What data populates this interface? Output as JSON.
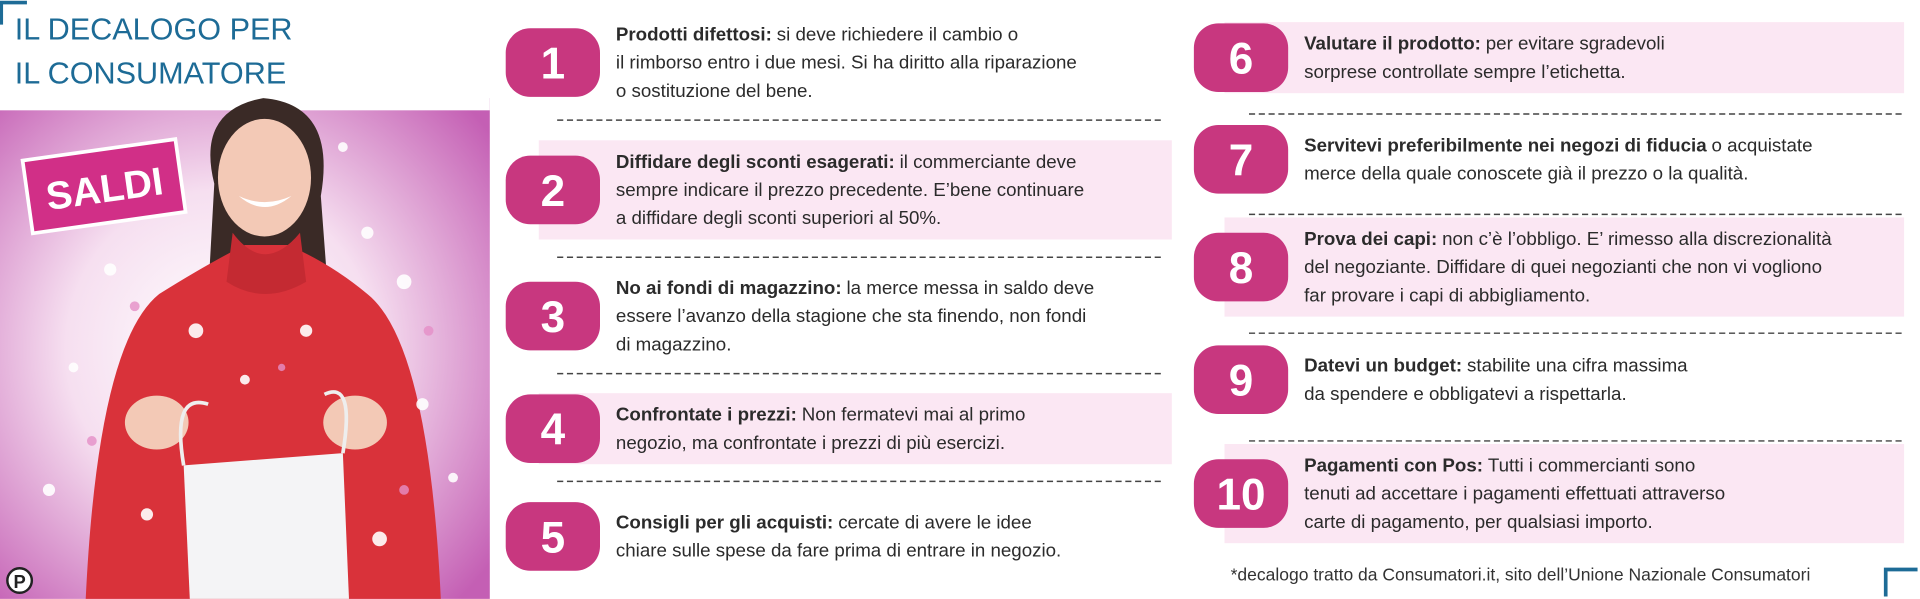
{
  "header": {
    "title_lines": [
      "IL DECALOGO PER",
      "IL CONSUMATORE"
    ]
  },
  "badge": "SALDI",
  "logo": "P",
  "items": [
    {
      "number": "1",
      "title": "Prodotti difettosi:",
      "lines": [
        "si deve richiedere il cambio o",
        "il rimborso entro i due mesi. Si ha diritto alla riparazione",
        "o sostituzione del bene."
      ]
    },
    {
      "number": "2",
      "title": "Diffidare degli sconti esagerati:",
      "lines": [
        "il commerciante deve",
        "sempre indicare il prezzo precedente. E’bene continuare",
        "a diffidare degli sconti superiori al 50%."
      ]
    },
    {
      "number": "3",
      "title": "No ai fondi di magazzino:",
      "lines": [
        "la merce messa in saldo deve",
        "essere l’avanzo della stagione che sta finendo, non fondi",
        "di magazzino."
      ]
    },
    {
      "number": "4",
      "title": "Confrontate i prezzi:",
      "lines": [
        "Non fermatevi mai al primo",
        "negozio, ma confrontate i prezzi di più esercizi."
      ]
    },
    {
      "number": "5",
      "title": "Consigli per gli acquisti:",
      "lines": [
        "cercate di avere le idee",
        "chiare sulle spese da fare prima di entrare in negozio."
      ]
    },
    {
      "number": "6",
      "title": "Valutare il prodotto:",
      "lines": [
        "per evitare sgradevoli",
        "sorprese controllate sempre l’etichetta."
      ]
    },
    {
      "number": "7",
      "title": "Servitevi preferibilmente nei negozi di fiducia",
      "lines": [
        "o acquistate",
        "merce della quale conoscete già il prezzo o la qualità."
      ]
    },
    {
      "number": "8",
      "title": "Prova dei capi:",
      "lines": [
        "non c’è l’obbligo. E’ rimesso alla discrezionalità",
        "del negoziante. Diffidare di quei negozianti che non vi vogliono",
        "far provare i capi di abbigliamento."
      ]
    },
    {
      "number": "9",
      "title": "Datevi un budget:",
      "lines": [
        "stabilite una cifra massima",
        "da spendere e obbligatevi a rispettarla."
      ]
    },
    {
      "number": "10",
      "title": "Pagamenti con Pos:",
      "lines": [
        "Tutti i commercianti sono",
        "tenuti ad accettare i pagamenti effettuati attraverso",
        "carte di pagamento, per qualsiasi importo."
      ]
    }
  ],
  "footnote": "*decalogo tratto da Consumatori.it, sito dell’Unione Nazionale Consumatori"
}
